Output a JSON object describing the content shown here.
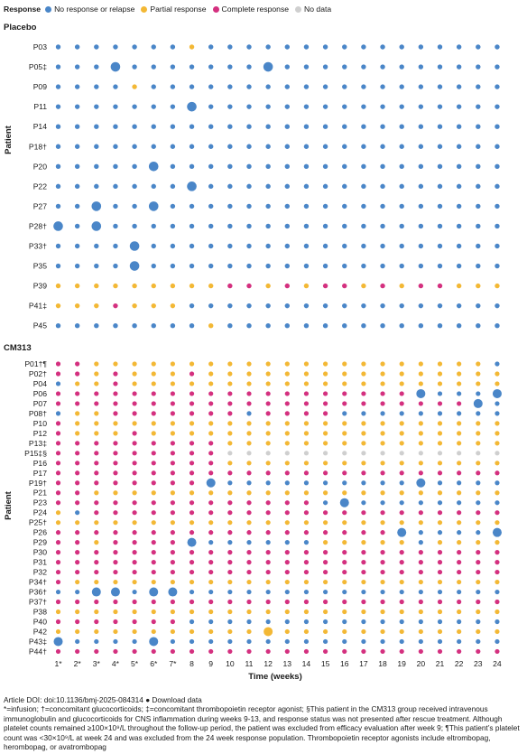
{
  "colors": {
    "none": "#4a86c8",
    "partial": "#f3b835",
    "complete": "#d4307f",
    "nodata": "#cfcfcf"
  },
  "legend": {
    "title": "Response",
    "items": [
      {
        "key": "none",
        "label": "No response or relapse"
      },
      {
        "key": "partial",
        "label": "Partial response"
      },
      {
        "key": "complete",
        "label": "Complete response"
      },
      {
        "key": "nodata",
        "label": "No data"
      }
    ]
  },
  "chart_data": {
    "type": "scatter",
    "xlabel": "Time (weeks)",
    "ylabel": "Patient",
    "x_ticks": [
      "1*",
      "2*",
      "3*",
      "4*",
      "5*",
      "6*",
      "7*",
      "8",
      "9",
      "10",
      "11",
      "12",
      "13",
      "14",
      "15",
      "16",
      "17",
      "18",
      "19",
      "20",
      "21",
      "22",
      "23",
      "24"
    ],
    "codes": {
      "N": "No response or relapse",
      "P": "Partial response",
      "C": "Complete response",
      "-": "No data"
    },
    "panels": [
      {
        "title": "Placebo",
        "patients": [
          {
            "id": "P03",
            "status": "NNNNNNNPNNNNNNNNNNNNNNNN",
            "large": []
          },
          {
            "id": "P05‡",
            "status": "NNNNNNNNNNNNNNNNNNNNNNNN",
            "large": [
              4,
              12
            ]
          },
          {
            "id": "P09",
            "status": "NNNNPNNNNNNNNNNNNNNNNNNN",
            "large": []
          },
          {
            "id": "P11",
            "status": "NNNNNNNNNNNNNNNNNNNNNNNN",
            "large": [
              8
            ]
          },
          {
            "id": "P14",
            "status": "NNNNNNNNNNNNNNNNNNNNNNNN",
            "large": []
          },
          {
            "id": "P18†",
            "status": "NNNNNNNNNNNNNNNNNNNNNNNN",
            "large": []
          },
          {
            "id": "P20",
            "status": "NNNNNNNNNNNNNNNNNNNNNNNN",
            "large": [
              6
            ]
          },
          {
            "id": "P22",
            "status": "NNNNNNNNNNNNNNNNNNNNNNNN",
            "large": [
              8
            ]
          },
          {
            "id": "P27",
            "status": "NNNNNNNNNNNNNNNNNNNNNNNN",
            "large": [
              3,
              6
            ]
          },
          {
            "id": "P28†",
            "status": "NNNNNNNNNNNNNNNNNNNNNNNN",
            "large": [
              1,
              3
            ]
          },
          {
            "id": "P33†",
            "status": "NNNNNNNNNNNNNNNNNNNNNNNN",
            "large": [
              5
            ]
          },
          {
            "id": "P35",
            "status": "NNNNNNNNNNNNNNNNNNNNNNNN",
            "large": [
              5
            ]
          },
          {
            "id": "P39",
            "status": "PPPPPPPPPCCPCPCCPCPCCPPP",
            "large": []
          },
          {
            "id": "P41‡",
            "status": "PPPCPPPNNNNNNNNNNNNNNNNN",
            "large": []
          },
          {
            "id": "P45",
            "status": "NNNNNNNNPNNNNNNNNNNNNNNN",
            "large": []
          }
        ]
      },
      {
        "title": "CM313",
        "patients": [
          {
            "id": "P01†¶",
            "status": "CCPPPPPPPPPPPPPPPPPPPPPN",
            "large": []
          },
          {
            "id": "P02†",
            "status": "CCPCPPPCPPPPPPPPPPPPPPPP",
            "large": []
          },
          {
            "id": "P04",
            "status": "NPPCPPPPPPPPPPPPPPPPPPPP",
            "large": []
          },
          {
            "id": "P06",
            "status": "CCCCCCCCCCCCCCCCCCCNNNNN",
            "large": [
              20,
              24
            ]
          },
          {
            "id": "P07",
            "status": "CCCCCCCCCCCCCCCCCCCCCCNN",
            "large": [
              23
            ]
          },
          {
            "id": "P08†",
            "status": "NPPCCCCCCCNCCCCNNNNNNNNN",
            "large": []
          },
          {
            "id": "P10",
            "status": "CPPPPPPPPPPPPPPPPPPPPPPP",
            "large": []
          },
          {
            "id": "P12",
            "status": "CPPPCPPPPPPPPPPPPPPPPPPP",
            "large": []
          },
          {
            "id": "P13‡",
            "status": "CCCCCCCCCPPPPPPPPPPPPPPP",
            "large": []
          },
          {
            "id": "P15‡§",
            "status": "CCCCCCCCC---------------",
            "large": []
          },
          {
            "id": "P16",
            "status": "CCCCCCCCCPPPPPPPPPPPPPPP",
            "large": []
          },
          {
            "id": "P17",
            "status": "CCCCCCCCCCCCCCCCCCCCCCCC",
            "large": []
          },
          {
            "id": "P19†",
            "status": "CCCCCCCCNNNNNNNNNNNNNNNN",
            "large": [
              9,
              20
            ]
          },
          {
            "id": "P21",
            "status": "CCPPPPPPPPPPPPPPPPPPPPPP",
            "large": []
          },
          {
            "id": "P23",
            "status": "CCCCCCCCCCCCCCNNNNNNNNNN",
            "large": [
              16
            ]
          },
          {
            "id": "P24",
            "status": "PNCCCCCCCCCCCCCCCCCCCCCC",
            "large": []
          },
          {
            "id": "P25†",
            "status": "PPPPPPPPPPPPPPPPPPPPPPPP",
            "large": []
          },
          {
            "id": "P26",
            "status": "CCCCCCCCCCCCCCCCCCNNNNNN",
            "large": [
              19,
              24
            ]
          },
          {
            "id": "P29",
            "status": "CCPCCCCNNNNNNNPPPPPNPPPP",
            "large": [
              8
            ]
          },
          {
            "id": "P30",
            "status": "CCCCCCCCCCCCCCCCCCCCCCCC",
            "large": []
          },
          {
            "id": "P31",
            "status": "CCCCCCCCCCCCCCCCCCCCCCCC",
            "large": []
          },
          {
            "id": "P32",
            "status": "CCCCCCCCCCCCCCCCCCCCCCCC",
            "large": []
          },
          {
            "id": "P34†",
            "status": "CPPPPPPPPPPPPPPPPPPPPPPP",
            "large": []
          },
          {
            "id": "P36†",
            "status": "NNNNNNNNNNNNNNNNNNNNNNNN",
            "large": [
              3,
              4,
              6,
              7
            ]
          },
          {
            "id": "P37†",
            "status": "CCCCCCCCCCCCCCCCCCCCCCCC",
            "large": []
          },
          {
            "id": "P38",
            "status": "PPPPPPPPPPPPPPPPPPPPPPPP",
            "large": []
          },
          {
            "id": "P40",
            "status": "CCCCCCCNNNNNNNNNNNNNNNNN",
            "large": []
          },
          {
            "id": "P42",
            "status": "PPPPPPPPPPPPPPPPPPPPPPPP",
            "large": [
              12
            ]
          },
          {
            "id": "P43‡",
            "status": "NNNNNNNNNNNNNNNNNNNNNNNN",
            "large": [
              1,
              6
            ]
          },
          {
            "id": "P44†",
            "status": "CCCCCCCCCCCCCCCCCCCCCCCC",
            "large": []
          }
        ]
      }
    ]
  },
  "footnotes": {
    "line1": "Article DOI: doi:10.1136/bmj-2025-084314 ● Download data",
    "line2": "*=infusion; †=concomitant glucocorticoids; ‡=concomitant thrombopoietin receptor agonist; §This patient in the CM313 group received intravenous immunoglobulin and glucocorticoids for CNS inflammation during weeks 9-13, and response status was not presented after rescue treatment. Although platelet counts remained ≥100×10⁹/L throughout the follow-up period, the patient was excluded from efficacy evaluation after week 9; ¶This patient’s platelet count was <30×10⁹/L at week 24 and was excluded from the 24 week response population. Thrombopoietin receptor agonists include eltrombopag, herombopag, or avatrombopag"
  }
}
